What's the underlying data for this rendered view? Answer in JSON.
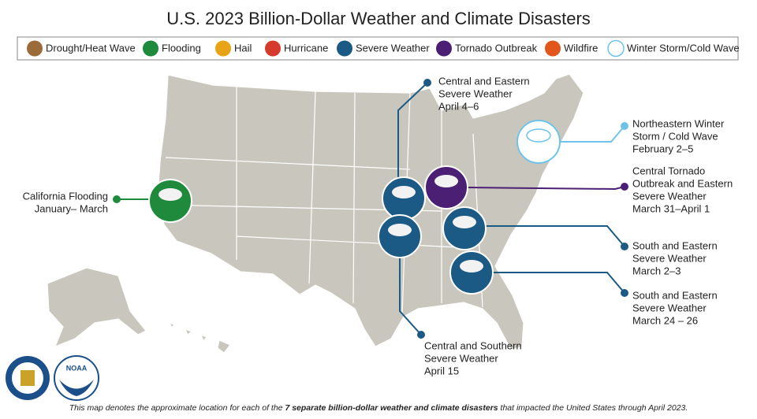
{
  "title": "U.S. 2023 Billion-Dollar Weather and Climate Disasters",
  "legend": [
    {
      "name": "Drought/Heat Wave",
      "color": "#9b6b3a"
    },
    {
      "name": "Flooding",
      "color": "#1f8a3c"
    },
    {
      "name": "Hail",
      "color": "#e8a317"
    },
    {
      "name": "Hurricane",
      "color": "#d63a2a"
    },
    {
      "name": "Severe Weather",
      "color": "#1b5a85"
    },
    {
      "name": "Tornado Outbreak",
      "color": "#4b1f73"
    },
    {
      "name": "Wildfire",
      "color": "#e0561b"
    },
    {
      "name": "Winter Storm/Cold Wave",
      "color": "#6fc3ea"
    }
  ],
  "events": [
    {
      "label": [
        "California Flooding",
        "January– March"
      ],
      "color": "#1f8a3c"
    },
    {
      "label": [
        "Central and Eastern",
        "Severe Weather",
        "April 4–6"
      ],
      "color": "#1b5a85"
    },
    {
      "label": [
        "Central Tornado",
        "Outbreak and Eastern",
        "Severe Weather",
        "March 31–April 1"
      ],
      "color": "#4b1f73"
    },
    {
      "label": [
        "Northeastern Winter",
        "Storm / Cold Wave",
        "February 2–5"
      ],
      "color": "#6fc3ea"
    },
    {
      "label": [
        "South and Eastern",
        "Severe Weather",
        "March 2–3"
      ],
      "color": "#1b5a85"
    },
    {
      "label": [
        "South and Eastern",
        "Severe Weather",
        "March 24 – 26"
      ],
      "color": "#1b5a85"
    },
    {
      "label": [
        "Central and Southern",
        "Severe Weather",
        "April 15"
      ],
      "color": "#1b5a85"
    }
  ],
  "logos": [
    "NOAA"
  ],
  "footer": [
    "This map denotes the approximate location for each of the ",
    "7 separate billion-dollar weather and climate disasters",
    " that impacted the United States through April 2023."
  ]
}
